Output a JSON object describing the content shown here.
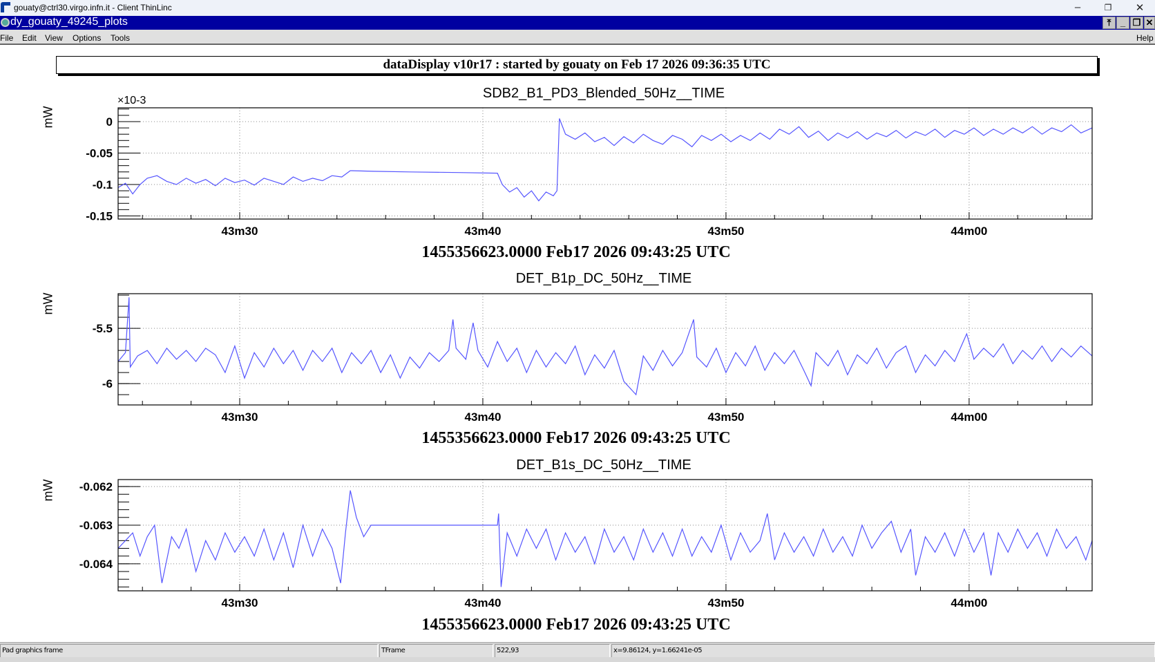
{
  "window": {
    "title": "gouaty@ctrl30.virgo.infn.it - Client ThinLinc",
    "app_title": "dy_gouaty_49245_plots"
  },
  "menu": [
    "File",
    "Edit",
    "View",
    "Options",
    "Tools",
    "Help"
  ],
  "header": "dataDisplay v10r17 : started by gouaty on Feb 17 2026 09:36:35 UTC",
  "status": {
    "s1": "Pad graphics frame",
    "s2": "TFrame",
    "s3": "522,93",
    "s4": "x=9.86124, y=1.66241e-05"
  },
  "colors": {
    "trace": "#5555ff",
    "titlebar": "#0000a0"
  },
  "chart_data": [
    {
      "type": "line",
      "title": "SDB2_B1_PD3_Blended_50Hz__TIME",
      "ylabel": "mW",
      "exponent": "×10-3",
      "date_label": "1455356623.0000 Feb17 2026 09:43:25 UTC",
      "xlim": [
        0,
        40.06
      ],
      "ylim": [
        -0.155,
        0.022
      ],
      "yticks": [
        0,
        -0.05,
        -0.1,
        -0.15
      ],
      "ytick_labels": [
        "0",
        "-0.05",
        "-0.1",
        "-0.15"
      ],
      "yminor": 0.01,
      "xticks": [
        5,
        15,
        25,
        35
      ],
      "xtick_labels": [
        "43m30",
        "43m40",
        "43m50",
        "44m00"
      ],
      "points": [
        [
          0,
          -0.105
        ],
        [
          0.3,
          -0.098
        ],
        [
          0.6,
          -0.115
        ],
        [
          0.9,
          -0.1
        ],
        [
          1.2,
          -0.09
        ],
        [
          1.6,
          -0.086
        ],
        [
          2,
          -0.095
        ],
        [
          2.4,
          -0.1
        ],
        [
          2.8,
          -0.09
        ],
        [
          3.2,
          -0.098
        ],
        [
          3.6,
          -0.092
        ],
        [
          4,
          -0.102
        ],
        [
          4.4,
          -0.09
        ],
        [
          4.8,
          -0.097
        ],
        [
          5.2,
          -0.093
        ],
        [
          5.6,
          -0.101
        ],
        [
          6,
          -0.09
        ],
        [
          6.4,
          -0.095
        ],
        [
          6.8,
          -0.1
        ],
        [
          7.2,
          -0.088
        ],
        [
          7.6,
          -0.095
        ],
        [
          8,
          -0.09
        ],
        [
          8.4,
          -0.094
        ],
        [
          8.8,
          -0.086
        ],
        [
          9.2,
          -0.088
        ],
        [
          9.55,
          -0.078
        ],
        [
          10.5,
          -0.079
        ],
        [
          12,
          -0.08
        ],
        [
          14,
          -0.081
        ],
        [
          15.6,
          -0.082
        ],
        [
          15.8,
          -0.1
        ],
        [
          16.1,
          -0.112
        ],
        [
          16.4,
          -0.105
        ],
        [
          16.7,
          -0.12
        ],
        [
          17,
          -0.11
        ],
        [
          17.3,
          -0.126
        ],
        [
          17.6,
          -0.112
        ],
        [
          17.9,
          -0.118
        ],
        [
          18.05,
          -0.11
        ],
        [
          18.15,
          0.005
        ],
        [
          18.4,
          -0.02
        ],
        [
          18.8,
          -0.028
        ],
        [
          19.2,
          -0.018
        ],
        [
          19.6,
          -0.032
        ],
        [
          20,
          -0.025
        ],
        [
          20.4,
          -0.038
        ],
        [
          20.8,
          -0.024
        ],
        [
          21.2,
          -0.034
        ],
        [
          21.6,
          -0.02
        ],
        [
          22,
          -0.03
        ],
        [
          22.4,
          -0.036
        ],
        [
          22.8,
          -0.022
        ],
        [
          23.2,
          -0.028
        ],
        [
          23.6,
          -0.04
        ],
        [
          24,
          -0.022
        ],
        [
          24.4,
          -0.03
        ],
        [
          24.8,
          -0.02
        ],
        [
          25.2,
          -0.032
        ],
        [
          25.6,
          -0.022
        ],
        [
          26,
          -0.03
        ],
        [
          26.4,
          -0.018
        ],
        [
          26.8,
          -0.028
        ],
        [
          27.2,
          -0.012
        ],
        [
          27.6,
          -0.02
        ],
        [
          28,
          -0.008
        ],
        [
          28.4,
          -0.025
        ],
        [
          28.8,
          -0.015
        ],
        [
          29.2,
          -0.03
        ],
        [
          29.6,
          -0.018
        ],
        [
          30,
          -0.026
        ],
        [
          30.4,
          -0.016
        ],
        [
          30.8,
          -0.028
        ],
        [
          31.2,
          -0.018
        ],
        [
          31.6,
          -0.024
        ],
        [
          32,
          -0.014
        ],
        [
          32.4,
          -0.026
        ],
        [
          32.8,
          -0.016
        ],
        [
          33.2,
          -0.022
        ],
        [
          33.6,
          -0.012
        ],
        [
          34,
          -0.025
        ],
        [
          34.4,
          -0.014
        ],
        [
          34.8,
          -0.02
        ],
        [
          35.2,
          -0.01
        ],
        [
          35.6,
          -0.022
        ],
        [
          36,
          -0.012
        ],
        [
          36.4,
          -0.02
        ],
        [
          36.8,
          -0.01
        ],
        [
          37.2,
          -0.018
        ],
        [
          37.6,
          -0.008
        ],
        [
          38,
          -0.02
        ],
        [
          38.4,
          -0.01
        ],
        [
          38.8,
          -0.016
        ],
        [
          39.2,
          -0.005
        ],
        [
          39.6,
          -0.018
        ],
        [
          40.06,
          -0.01
        ]
      ]
    },
    {
      "type": "line",
      "title": "DET_B1p_DC_50Hz__TIME",
      "ylabel": "mW",
      "date_label": "1455356623.0000 Feb17 2026 09:43:25 UTC",
      "xlim": [
        0,
        40.06
      ],
      "ylim": [
        -6.193,
        -5.187
      ],
      "yticks": [
        -5.5,
        -6
      ],
      "ytick_labels": [
        "-5.5",
        "-6"
      ],
      "yminor": 0.1,
      "xticks": [
        5,
        15,
        25,
        35
      ],
      "xtick_labels": [
        "43m30",
        "43m40",
        "43m50",
        "44m00"
      ],
      "points": [
        [
          0,
          -5.8
        ],
        [
          0.3,
          -5.72
        ],
        [
          0.45,
          -5.22
        ],
        [
          0.5,
          -5.85
        ],
        [
          0.8,
          -5.75
        ],
        [
          1.2,
          -5.7
        ],
        [
          1.6,
          -5.82
        ],
        [
          2,
          -5.68
        ],
        [
          2.4,
          -5.78
        ],
        [
          2.8,
          -5.7
        ],
        [
          3.2,
          -5.8
        ],
        [
          3.6,
          -5.68
        ],
        [
          4,
          -5.74
        ],
        [
          4.4,
          -5.9
        ],
        [
          4.8,
          -5.66
        ],
        [
          5.2,
          -5.95
        ],
        [
          5.6,
          -5.72
        ],
        [
          6,
          -5.85
        ],
        [
          6.4,
          -5.68
        ],
        [
          6.8,
          -5.82
        ],
        [
          7.2,
          -5.7
        ],
        [
          7.6,
          -5.88
        ],
        [
          8,
          -5.7
        ],
        [
          8.4,
          -5.8
        ],
        [
          8.8,
          -5.68
        ],
        [
          9.2,
          -5.9
        ],
        [
          9.6,
          -5.72
        ],
        [
          10,
          -5.82
        ],
        [
          10.4,
          -5.7
        ],
        [
          10.8,
          -5.9
        ],
        [
          11.2,
          -5.74
        ],
        [
          11.6,
          -5.95
        ],
        [
          12,
          -5.76
        ],
        [
          12.4,
          -5.86
        ],
        [
          12.8,
          -5.72
        ],
        [
          13.2,
          -5.8
        ],
        [
          13.6,
          -5.7
        ],
        [
          13.77,
          -5.42
        ],
        [
          13.9,
          -5.68
        ],
        [
          14.3,
          -5.78
        ],
        [
          14.6,
          -5.45
        ],
        [
          14.8,
          -5.7
        ],
        [
          15.2,
          -5.85
        ],
        [
          15.6,
          -5.62
        ],
        [
          16,
          -5.8
        ],
        [
          16.4,
          -5.68
        ],
        [
          16.8,
          -5.9
        ],
        [
          17.2,
          -5.7
        ],
        [
          17.6,
          -5.85
        ],
        [
          18,
          -5.72
        ],
        [
          18.4,
          -5.82
        ],
        [
          18.8,
          -5.66
        ],
        [
          19.2,
          -5.92
        ],
        [
          19.6,
          -5.74
        ],
        [
          20,
          -5.86
        ],
        [
          20.4,
          -5.7
        ],
        [
          20.8,
          -5.98
        ],
        [
          21.3,
          -6.1
        ],
        [
          21.6,
          -5.75
        ],
        [
          22,
          -5.88
        ],
        [
          22.4,
          -5.7
        ],
        [
          22.8,
          -5.84
        ],
        [
          23.2,
          -5.72
        ],
        [
          23.67,
          -5.42
        ],
        [
          23.8,
          -5.76
        ],
        [
          24.2,
          -5.85
        ],
        [
          24.6,
          -5.68
        ],
        [
          25,
          -5.9
        ],
        [
          25.4,
          -5.72
        ],
        [
          25.8,
          -5.84
        ],
        [
          26.2,
          -5.66
        ],
        [
          26.6,
          -5.88
        ],
        [
          27,
          -5.72
        ],
        [
          27.4,
          -5.82
        ],
        [
          27.8,
          -5.7
        ],
        [
          28.2,
          -5.88
        ],
        [
          28.5,
          -6.02
        ],
        [
          28.7,
          -5.72
        ],
        [
          29.2,
          -5.84
        ],
        [
          29.6,
          -5.7
        ],
        [
          30,
          -5.92
        ],
        [
          30.4,
          -5.74
        ],
        [
          30.8,
          -5.82
        ],
        [
          31.2,
          -5.68
        ],
        [
          31.6,
          -5.86
        ],
        [
          32,
          -5.72
        ],
        [
          32.4,
          -5.66
        ],
        [
          32.8,
          -5.9
        ],
        [
          33.2,
          -5.74
        ],
        [
          33.6,
          -5.84
        ],
        [
          34,
          -5.7
        ],
        [
          34.4,
          -5.8
        ],
        [
          34.9,
          -5.55
        ],
        [
          35.2,
          -5.78
        ],
        [
          35.6,
          -5.68
        ],
        [
          36,
          -5.76
        ],
        [
          36.4,
          -5.64
        ],
        [
          36.8,
          -5.82
        ],
        [
          37.2,
          -5.7
        ],
        [
          37.6,
          -5.78
        ],
        [
          38,
          -5.66
        ],
        [
          38.4,
          -5.8
        ],
        [
          38.8,
          -5.68
        ],
        [
          39.2,
          -5.76
        ],
        [
          39.6,
          -5.66
        ],
        [
          40.06,
          -5.75
        ]
      ]
    },
    {
      "type": "line",
      "title": "DET_B1s_DC_50Hz__TIME",
      "ylabel": "mW",
      "date_label": "1455356623.0000 Feb17 2026 09:43:25 UTC",
      "xlim": [
        0,
        40.06
      ],
      "ylim": [
        -0.0647,
        -0.06182
      ],
      "yticks": [
        -0.062,
        -0.063,
        -0.064
      ],
      "ytick_labels": [
        "-0.062",
        "-0.063",
        "-0.064"
      ],
      "yminor": 0.0002,
      "xticks": [
        5,
        15,
        25,
        35
      ],
      "xtick_labels": [
        "43m30",
        "43m40",
        "43m50",
        "44m00"
      ],
      "points": [
        [
          0,
          -0.0636
        ],
        [
          0.3,
          -0.0634
        ],
        [
          0.6,
          -0.0632
        ],
        [
          0.9,
          -0.0638
        ],
        [
          1.2,
          -0.0633
        ],
        [
          1.5,
          -0.063
        ],
        [
          1.8,
          -0.0645
        ],
        [
          2.2,
          -0.0633
        ],
        [
          2.5,
          -0.0636
        ],
        [
          2.8,
          -0.0631
        ],
        [
          3.2,
          -0.0642
        ],
        [
          3.6,
          -0.0634
        ],
        [
          4,
          -0.0639
        ],
        [
          4.4,
          -0.0632
        ],
        [
          4.8,
          -0.0637
        ],
        [
          5.2,
          -0.0633
        ],
        [
          5.6,
          -0.0638
        ],
        [
          6,
          -0.0631
        ],
        [
          6.4,
          -0.0639
        ],
        [
          6.8,
          -0.0632
        ],
        [
          7.2,
          -0.0641
        ],
        [
          7.6,
          -0.063
        ],
        [
          8,
          -0.0638
        ],
        [
          8.4,
          -0.0631
        ],
        [
          8.8,
          -0.0636
        ],
        [
          9.15,
          -0.0645
        ],
        [
          9.35,
          -0.0632
        ],
        [
          9.55,
          -0.0621
        ],
        [
          9.8,
          -0.0628
        ],
        [
          10.1,
          -0.0633
        ],
        [
          10.4,
          -0.063
        ],
        [
          12,
          -0.063
        ],
        [
          14,
          -0.063
        ],
        [
          15.6,
          -0.063
        ],
        [
          15.65,
          -0.0627
        ],
        [
          15.75,
          -0.0646
        ],
        [
          16,
          -0.0632
        ],
        [
          16.4,
          -0.0638
        ],
        [
          16.8,
          -0.0631
        ],
        [
          17.2,
          -0.0636
        ],
        [
          17.6,
          -0.0631
        ],
        [
          18,
          -0.0639
        ],
        [
          18.4,
          -0.0632
        ],
        [
          18.8,
          -0.0637
        ],
        [
          19.2,
          -0.0633
        ],
        [
          19.6,
          -0.064
        ],
        [
          20,
          -0.0631
        ],
        [
          20.4,
          -0.0637
        ],
        [
          20.8,
          -0.0633
        ],
        [
          21.2,
          -0.0639
        ],
        [
          21.6,
          -0.0631
        ],
        [
          22,
          -0.0637
        ],
        [
          22.4,
          -0.0632
        ],
        [
          22.8,
          -0.0638
        ],
        [
          23.2,
          -0.0631
        ],
        [
          23.6,
          -0.0638
        ],
        [
          24,
          -0.0633
        ],
        [
          24.4,
          -0.0637
        ],
        [
          24.8,
          -0.063
        ],
        [
          25.2,
          -0.0639
        ],
        [
          25.6,
          -0.0632
        ],
        [
          26,
          -0.0637
        ],
        [
          26.4,
          -0.0634
        ],
        [
          26.7,
          -0.0627
        ],
        [
          27,
          -0.0639
        ],
        [
          27.4,
          -0.0632
        ],
        [
          27.8,
          -0.0637
        ],
        [
          28.2,
          -0.0633
        ],
        [
          28.6,
          -0.0638
        ],
        [
          29,
          -0.0631
        ],
        [
          29.4,
          -0.0637
        ],
        [
          29.8,
          -0.0633
        ],
        [
          30.2,
          -0.0638
        ],
        [
          30.6,
          -0.063
        ],
        [
          31,
          -0.0636
        ],
        [
          31.4,
          -0.0632
        ],
        [
          31.8,
          -0.0629
        ],
        [
          32.2,
          -0.0637
        ],
        [
          32.6,
          -0.0631
        ],
        [
          32.8,
          -0.0643
        ],
        [
          33.2,
          -0.0633
        ],
        [
          33.6,
          -0.0637
        ],
        [
          34,
          -0.0632
        ],
        [
          34.4,
          -0.0638
        ],
        [
          34.8,
          -0.0631
        ],
        [
          35.2,
          -0.0637
        ],
        [
          35.6,
          -0.0632
        ],
        [
          35.9,
          -0.0643
        ],
        [
          36.2,
          -0.0632
        ],
        [
          36.6,
          -0.0637
        ],
        [
          37,
          -0.0631
        ],
        [
          37.4,
          -0.0636
        ],
        [
          37.8,
          -0.0632
        ],
        [
          38.2,
          -0.0638
        ],
        [
          38.6,
          -0.0631
        ],
        [
          39,
          -0.0636
        ],
        [
          39.4,
          -0.0633
        ],
        [
          39.8,
          -0.0639
        ],
        [
          40.06,
          -0.0634
        ]
      ]
    }
  ]
}
